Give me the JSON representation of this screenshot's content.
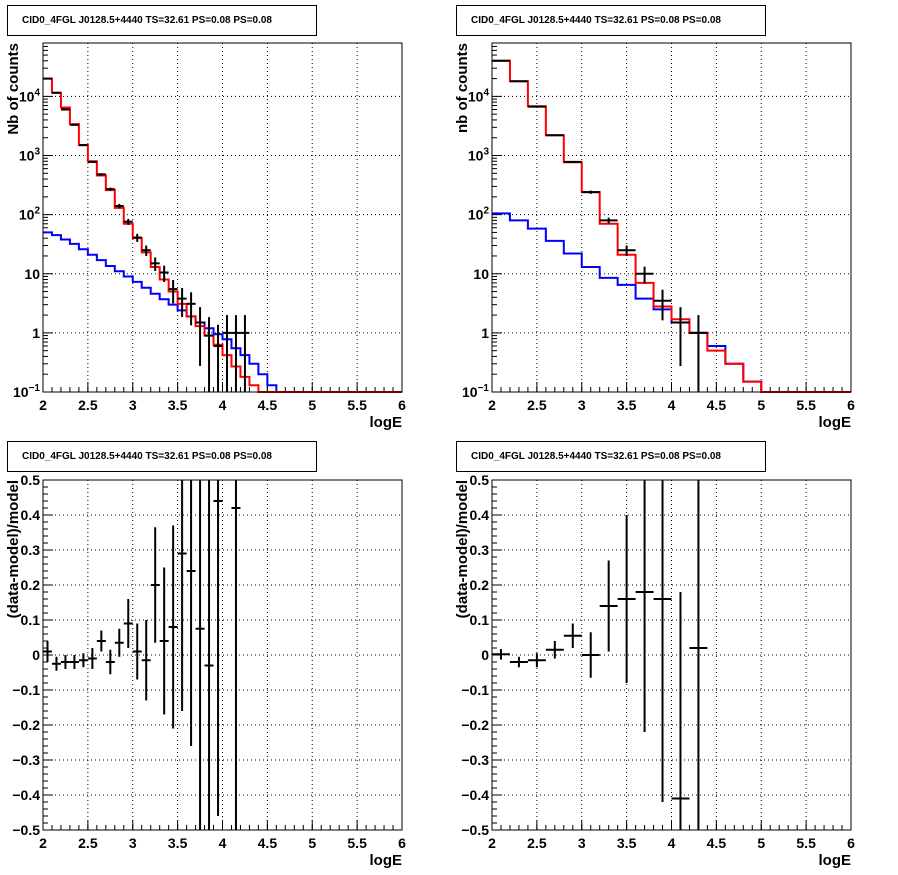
{
  "panels": [
    {
      "title": "CID0_4FGL J0128.5+4440 TS=32.61 PS=0.08 PS=0.08",
      "xlabel": "logE",
      "ylabel": "Nb of counts"
    },
    {
      "title": "CID0_4FGL J0128.5+4440 TS=32.61 PS=0.08 PS=0.08",
      "xlabel": "logE",
      "ylabel": "nb of counts"
    },
    {
      "title": "CID0_4FGL J0128.5+4440 TS=32.61 PS=0.08 PS=0.08",
      "xlabel": "logE",
      "ylabel": "(data-model)/model"
    },
    {
      "title": "CID0_4FGL J0128.5+4440 TS=32.61 PS=0.08 PS=0.08",
      "xlabel": "logE",
      "ylabel": "(data-model)/model"
    }
  ],
  "colors": {
    "model_total": "#ff0000",
    "model_source": "#0000ff",
    "data": "#000000",
    "grid": "#000000"
  },
  "chart_data": [
    {
      "type": "line",
      "yscale": "log",
      "xlim": [
        2,
        6
      ],
      "ylim": [
        0.1,
        80000
      ],
      "grid": true,
      "xticks": [
        "2",
        "2.5",
        "3",
        "3.5",
        "4",
        "4.5",
        "5",
        "5.5",
        "6"
      ],
      "yticks": [
        "10^-1",
        "1",
        "10",
        "10^2",
        "10^3",
        "10^4"
      ],
      "bin_edges": [
        2.0,
        2.1,
        2.2,
        2.3,
        2.4,
        2.5,
        2.6,
        2.7,
        2.8,
        2.9,
        3.0,
        3.1,
        3.2,
        3.3,
        3.4,
        3.5,
        3.6,
        3.7,
        3.8,
        3.9,
        4.0,
        4.1,
        4.2,
        4.3,
        4.4,
        4.5,
        4.6,
        4.7,
        4.8,
        4.9,
        5.0,
        5.1,
        5.2,
        5.3,
        5.4,
        5.5,
        5.6,
        5.7,
        5.8,
        5.9,
        6.0
      ],
      "series": [
        {
          "values": [
            20000,
            11500,
            6500,
            3400,
            1500,
            800,
            460,
            260,
            130,
            70,
            40,
            23,
            13,
            8,
            5,
            3.1,
            1.9,
            1.3,
            0.9,
            0.63,
            0.42,
            0.27,
            0.18,
            0.13,
            0.1,
            0.1,
            0.1,
            0.1,
            0.1,
            0.1,
            0.1,
            0.1,
            0.1,
            0.1,
            0.1,
            0.1,
            0.1,
            0.1,
            0.1,
            0.1
          ]
        },
        {
          "values": [
            50,
            45,
            38,
            32,
            26,
            21,
            17,
            13.5,
            11,
            9,
            7.3,
            5.8,
            4.6,
            3.7,
            3,
            2.4,
            1.9,
            1.5,
            1.2,
            0.95,
            0.78,
            0.55,
            0.42,
            0.3,
            0.2,
            0.13,
            0.1,
            0.1,
            0.1,
            0.1,
            0.1,
            0.1,
            0.1,
            0.1,
            0.1,
            0.1,
            0.1,
            0.1,
            0.1,
            0.1
          ]
        },
        {
          "x": [
            2.05,
            2.15,
            2.25,
            2.35,
            2.45,
            2.55,
            2.65,
            2.75,
            2.85,
            2.95,
            3.05,
            3.15,
            3.25,
            3.35,
            3.45,
            3.55,
            3.65,
            3.75,
            3.85,
            3.95,
            4.05,
            4.15,
            4.25
          ],
          "values": [
            20000,
            11500,
            6000,
            3300,
            1500,
            780,
            480,
            270,
            140,
            76,
            41,
            25,
            15,
            10.5,
            5.5,
            3.8,
            3.1,
            1.5,
            0.9,
            0.6,
            1,
            1,
            1
          ],
          "err_lo": [
            0,
            0,
            0,
            0,
            0,
            0,
            0,
            0,
            0,
            0,
            0,
            0,
            0,
            0,
            0,
            0,
            0,
            0,
            0,
            0,
            0,
            0,
            0
          ],
          "err_hi": [
            0,
            0,
            0,
            0,
            0,
            0,
            0,
            0,
            0,
            0,
            0,
            0,
            0,
            0,
            0,
            0,
            0,
            0,
            0,
            0,
            0,
            0,
            0
          ]
        }
      ]
    },
    {
      "type": "line",
      "yscale": "log",
      "xlim": [
        2,
        6
      ],
      "ylim": [
        0.1,
        80000
      ],
      "grid": true,
      "xticks": [
        "2",
        "2.5",
        "3",
        "3.5",
        "4",
        "4.5",
        "5",
        "5.5",
        "6"
      ],
      "yticks": [
        "10^-1",
        "1",
        "10",
        "10^2",
        "10^3",
        "10^4"
      ],
      "bin_edges": [
        2.0,
        2.2,
        2.4,
        2.6,
        2.8,
        3.0,
        3.2,
        3.4,
        3.6,
        3.8,
        4.0,
        4.2,
        4.4,
        4.6,
        4.8,
        5.0,
        5.2,
        5.4,
        5.6,
        5.8,
        6.0
      ],
      "series": [
        {
          "values": [
            40000,
            18000,
            6800,
            2200,
            770,
            240,
            70,
            21,
            7,
            2.8,
            1.7,
            1,
            0.5,
            0.3,
            0.15,
            0.1,
            0.1,
            0.1,
            0.1,
            0.1
          ]
        },
        {
          "values": [
            105,
            80,
            58,
            36,
            22,
            13,
            8.5,
            6.5,
            3.8,
            2.5,
            1.5,
            1,
            0.6,
            0.3,
            0.15,
            0.1,
            0.1,
            0.1,
            0.1,
            0.1
          ]
        },
        {
          "x": [
            2.1,
            2.3,
            2.5,
            2.7,
            2.9,
            3.1,
            3.3,
            3.5,
            3.7,
            3.9,
            4.1,
            4.3
          ],
          "values": [
            40000,
            18000,
            6700,
            2200,
            780,
            240,
            80,
            25,
            10,
            3.5,
            1.5,
            1
          ]
        }
      ]
    },
    {
      "type": "scatter",
      "xlim": [
        2,
        6
      ],
      "ylim": [
        -0.5,
        0.5
      ],
      "grid": true,
      "xticks": [
        "2",
        "2.5",
        "3",
        "3.5",
        "4",
        "4.5",
        "5",
        "5.5",
        "6"
      ],
      "yticks": [
        "−0.5",
        "−0.4",
        "−0.3",
        "−0.2",
        "−0.1",
        "0",
        "0.1",
        "0.2",
        "0.3",
        "0.4",
        "0.5"
      ],
      "series": [
        {
          "x": [
            2.05,
            2.15,
            2.25,
            2.35,
            2.45,
            2.55,
            2.65,
            2.75,
            2.85,
            2.95,
            3.05,
            3.15,
            3.25,
            3.35,
            3.45,
            3.55,
            3.65,
            3.75,
            3.85,
            3.95,
            4.15
          ],
          "values": [
            0.01,
            -0.025,
            -0.02,
            -0.02,
            -0.015,
            -0.01,
            0.04,
            -0.02,
            0.035,
            0.09,
            0.01,
            -0.015,
            0.2,
            0.04,
            0.08,
            0.29,
            0.24,
            0.075,
            -0.03,
            0.44,
            0.42
          ],
          "err": [
            0.03,
            0.02,
            0.02,
            0.02,
            0.02,
            0.03,
            0.03,
            0.035,
            0.04,
            0.07,
            0.08,
            0.115,
            0.165,
            0.21,
            0.29,
            0.45,
            0.5,
            0.6,
            0.7,
            0.9,
            1.0
          ]
        }
      ]
    },
    {
      "type": "scatter",
      "xlim": [
        2,
        6
      ],
      "ylim": [
        -0.5,
        0.5
      ],
      "grid": true,
      "xticks": [
        "2",
        "2.5",
        "3",
        "3.5",
        "4",
        "4.5",
        "5",
        "5.5",
        "6"
      ],
      "yticks": [
        "−0.5",
        "−0.4",
        "−0.3",
        "−0.2",
        "−0.1",
        "0",
        "0.1",
        "0.2",
        "0.3",
        "0.4",
        "0.5"
      ],
      "series": [
        {
          "x": [
            2.1,
            2.3,
            2.5,
            2.7,
            2.9,
            3.1,
            3.3,
            3.5,
            3.7,
            3.9,
            4.1,
            4.3
          ],
          "values": [
            0.002,
            -0.02,
            -0.015,
            0.015,
            0.055,
            0.0,
            0.14,
            0.16,
            0.18,
            0.16,
            -0.41,
            0.02
          ],
          "err": [
            0.015,
            0.015,
            0.02,
            0.025,
            0.035,
            0.065,
            0.13,
            0.24,
            0.4,
            0.58,
            0.59,
            0.6
          ]
        }
      ]
    }
  ]
}
